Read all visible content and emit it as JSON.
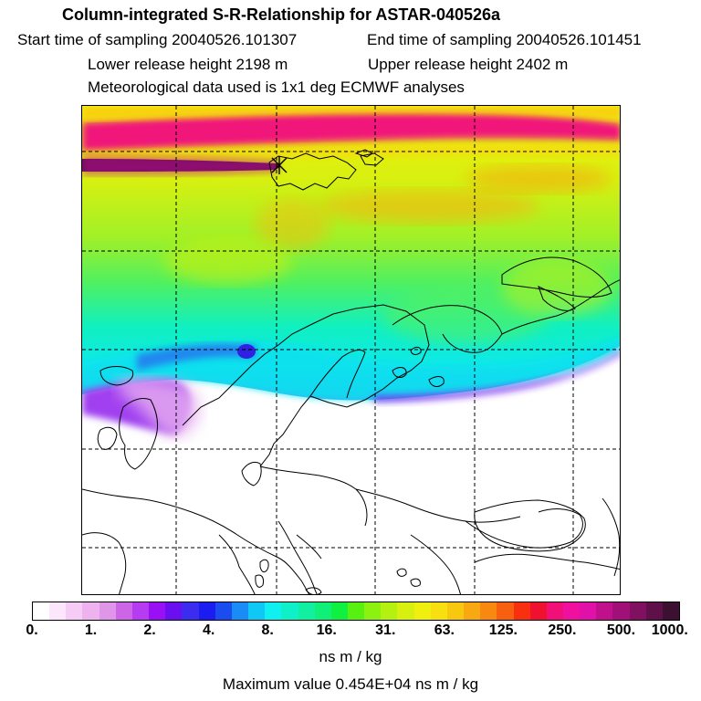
{
  "header": {
    "title": "Column-integrated S-R-Relationship for ASTAR-040526a",
    "start_time": "Start time of sampling 20040526.101307",
    "end_time": "End time of sampling 20040526.101451",
    "lower_height": "Lower release height 2198 m",
    "upper_height": "Upper release height 2402 m",
    "met_data": "Meteorological data used is 1x1 deg ECMWF analyses"
  },
  "colorbar": {
    "ticks": [
      "0.",
      "1.",
      "2.",
      "4.",
      "8.",
      "16.",
      "31.",
      "63.",
      "125.",
      "250.",
      "500.",
      "1000."
    ],
    "colors": [
      "#ffffff",
      "#fbe6fb",
      "#f5ccf5",
      "#eeb3ee",
      "#e096e8",
      "#cc66e6",
      "#b53cf0",
      "#9a10f5",
      "#6a10f0",
      "#3c2cf0",
      "#1a1cf0",
      "#1a4cf0",
      "#1a8cf5",
      "#10c8f5",
      "#10f0f0",
      "#10f0c8",
      "#10f0a0",
      "#10f078",
      "#10f040",
      "#58f010",
      "#8cf010",
      "#b4f010",
      "#d8f010",
      "#f0f010",
      "#f8e010",
      "#f8c810",
      "#f8a810",
      "#f88810",
      "#f86010",
      "#f83010",
      "#f01030",
      "#f01078",
      "#f010a0",
      "#e010a8",
      "#c0108c",
      "#a01078",
      "#801060",
      "#601048",
      "#3c1030"
    ],
    "unit": "ns m / kg"
  },
  "footer": {
    "max_value": "Maximum value  0.454E+04 ns m / kg"
  },
  "map": {
    "release_point": "x-marker",
    "colors": {
      "magenta": "#f0147a",
      "dark_purple": "#5a1050",
      "yellow": "#f0f010",
      "yellow_green": "#c8f010",
      "green": "#50f060",
      "cyan": "#10e8e8",
      "blue": "#2a60f0",
      "violet": "#b03cf0",
      "light_violet": "#e8b0f0",
      "orange": "#f8a010"
    }
  }
}
